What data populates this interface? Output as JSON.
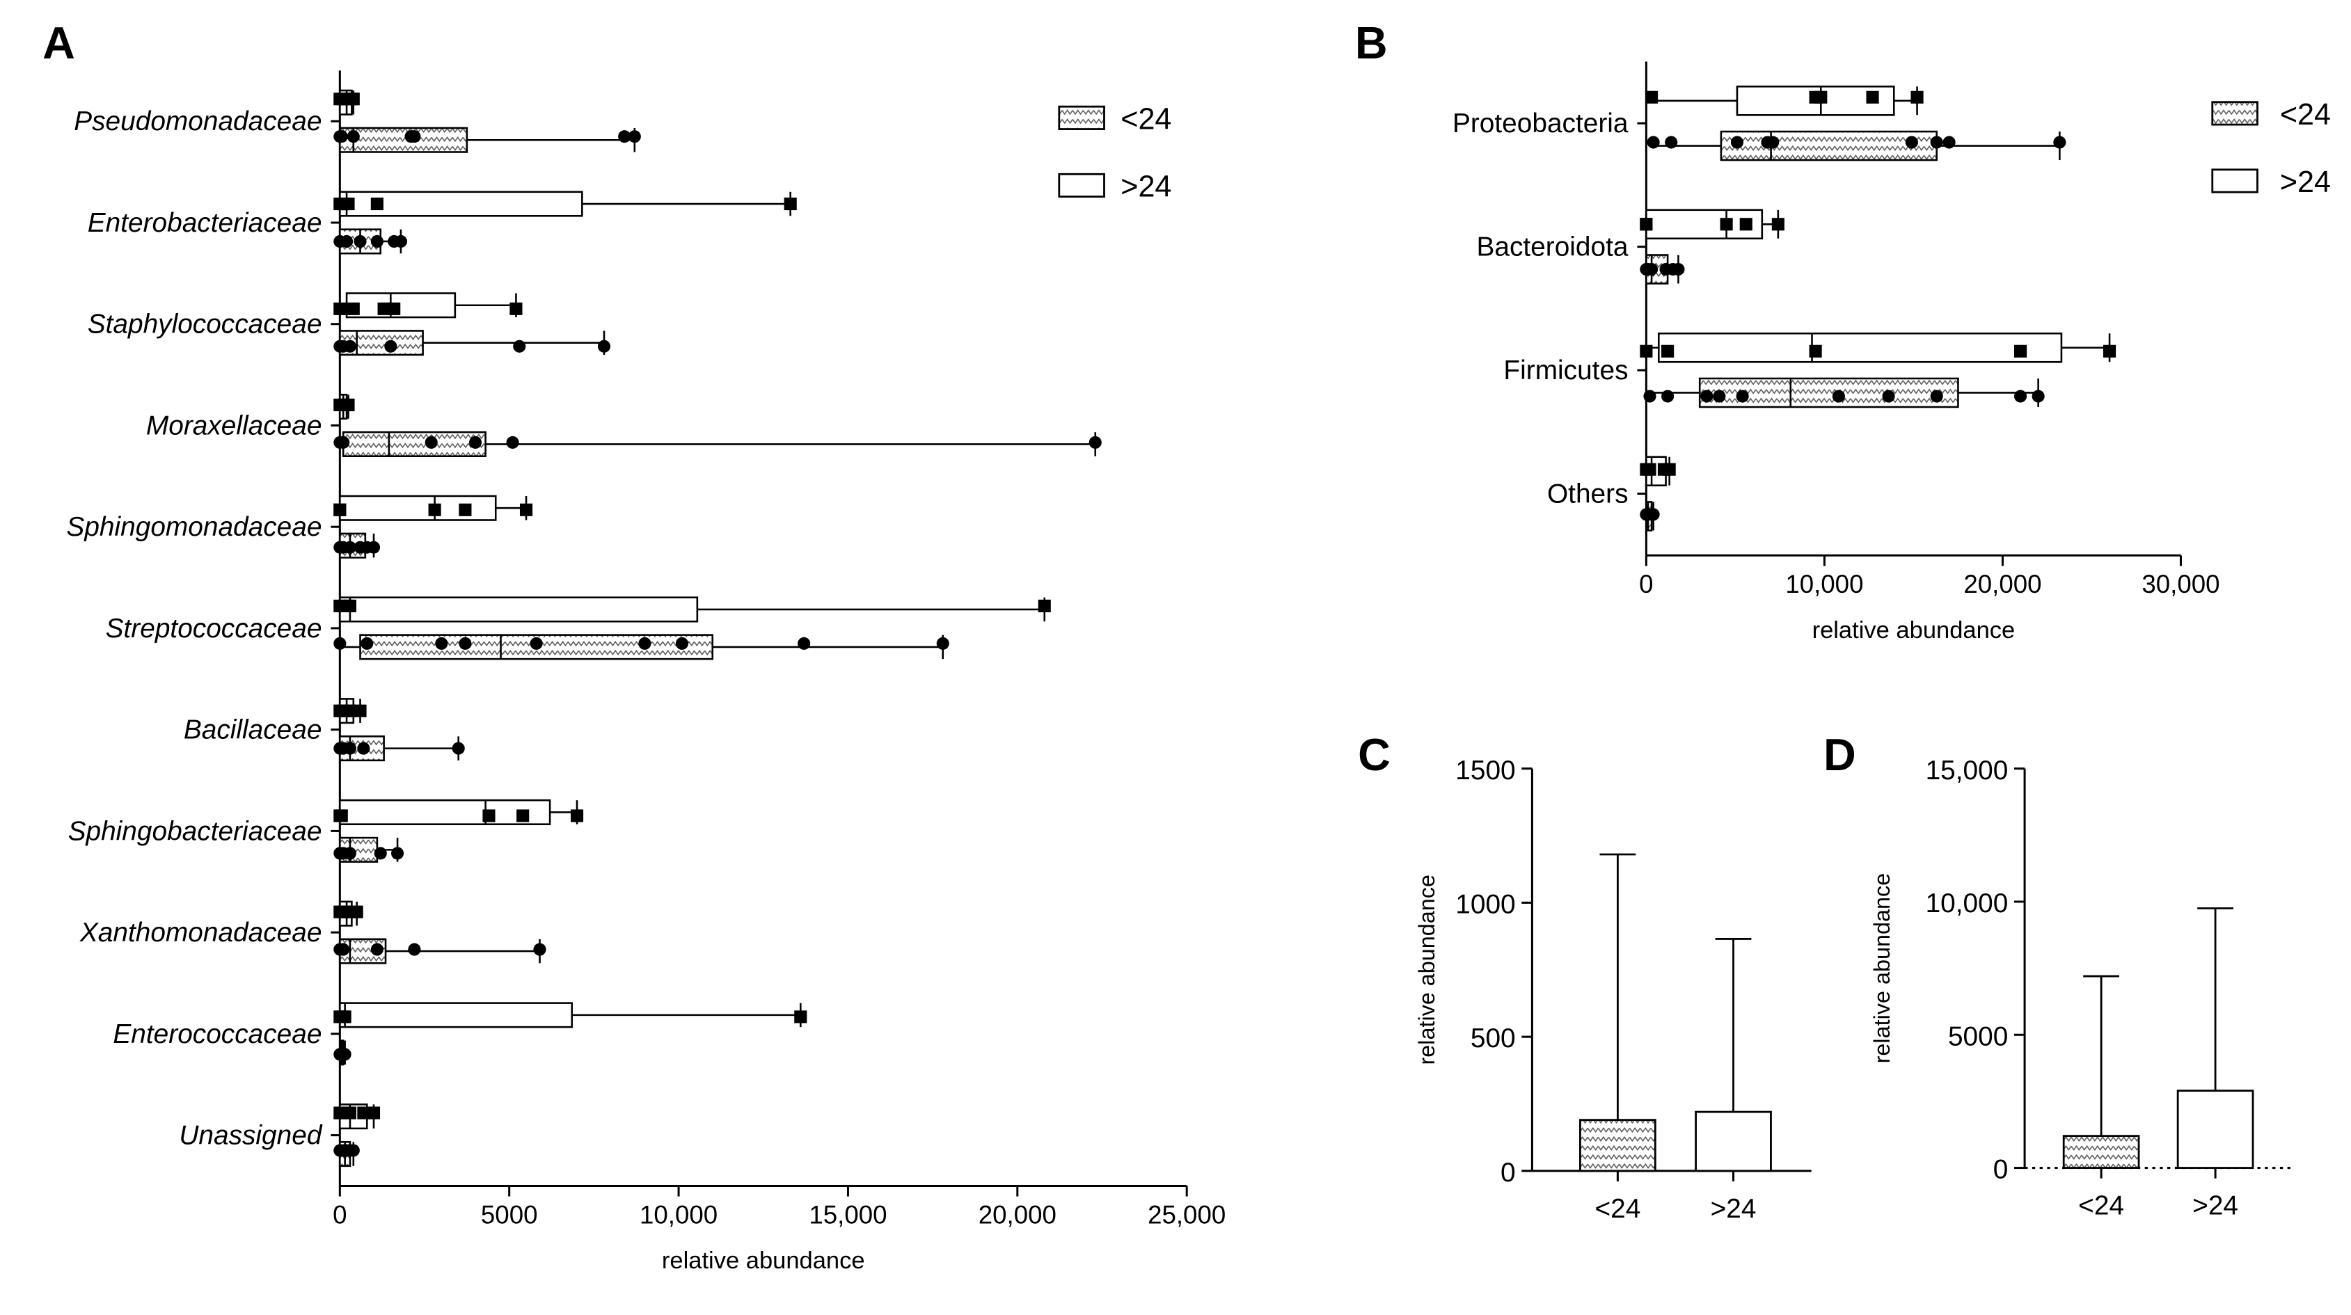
{
  "figure": {
    "panel_letters": [
      "A",
      "B",
      "C",
      "D"
    ],
    "legend": {
      "lt24": "<24",
      "gt24": ">24"
    }
  },
  "chart_data": [
    {
      "panel": "A",
      "type": "boxplot",
      "orientation": "horizontal",
      "xlabel": "relative abundance",
      "xlim": [
        0,
        25000
      ],
      "xticks": [
        0,
        5000,
        10000,
        15000,
        20000,
        25000
      ],
      "xtick_labels": [
        "0",
        "5000",
        "10,000",
        "15,000",
        "20,000",
        "25,000"
      ],
      "categories": [
        "Pseudomonadaceae",
        "Enterobacteriaceae",
        "Staphylococcaceae",
        "Moraxellaceae",
        "Sphingomonadaceae",
        "Streptococcaceae",
        "Bacillaceae",
        "Sphingobacteriaceae",
        "Xanthomonadaceae",
        "Enterococcaceae",
        "Unassigned"
      ],
      "italic_categories": true,
      "series": [
        {
          "name": ">24",
          "fill": "white",
          "marker": "square",
          "boxes": [
            {
              "min": 0,
              "q1": 0,
              "median": 200,
              "q3": 350,
              "max": 400,
              "points": [
                0,
                100,
                200,
                300,
                350,
                400,
                250
              ]
            },
            {
              "min": 0,
              "q1": 0,
              "median": 200,
              "q3": 7150,
              "max": 13300,
              "points": [
                0,
                100,
                250,
                1100,
                13300
              ]
            },
            {
              "min": 0,
              "q1": 200,
              "median": 1500,
              "q3": 3400,
              "max": 5200,
              "points": [
                0,
                400,
                1300,
                1600,
                5200
              ]
            },
            {
              "min": 0,
              "q1": 0,
              "median": 100,
              "q3": 200,
              "max": 250,
              "points": [
                0,
                100,
                200,
                250
              ]
            },
            {
              "min": 0,
              "q1": 0,
              "median": 2800,
              "q3": 4600,
              "max": 5500,
              "points": [
                0,
                0,
                2800,
                3700,
                5500
              ]
            },
            {
              "min": 0,
              "q1": 0,
              "median": 300,
              "q3": 10550,
              "max": 20800,
              "points": [
                0,
                200,
                300,
                20800
              ]
            },
            {
              "min": 0,
              "q1": 0,
              "median": 200,
              "q3": 400,
              "max": 600,
              "points": [
                0,
                100,
                200,
                300,
                600
              ]
            },
            {
              "min": 0,
              "q1": 0,
              "median": 4300,
              "q3": 6200,
              "max": 7000,
              "points": [
                0,
                50,
                4400,
                5400,
                7000
              ]
            },
            {
              "min": 0,
              "q1": 0,
              "median": 200,
              "q3": 350,
              "max": 500,
              "points": [
                0,
                100,
                200,
                300,
                500
              ]
            },
            {
              "min": 0,
              "q1": 0,
              "median": 150,
              "q3": 6850,
              "max": 13600,
              "points": [
                0,
                100,
                150,
                13600
              ]
            },
            {
              "min": 0,
              "q1": 0,
              "median": 300,
              "q3": 800,
              "max": 1000,
              "points": [
                0,
                50,
                300,
                700,
                1000
              ]
            }
          ]
        },
        {
          "name": "<24",
          "fill": "hatched",
          "marker": "circle",
          "boxes": [
            {
              "min": 0,
              "q1": 0,
              "median": 400,
              "q3": 3750,
              "max": 8700,
              "points": [
                0,
                50,
                400,
                2100,
                2200,
                8400,
                8700
              ]
            },
            {
              "min": 0,
              "q1": 0,
              "median": 600,
              "q3": 1200,
              "max": 1800,
              "points": [
                0,
                200,
                600,
                1100,
                1600,
                1800
              ]
            },
            {
              "min": 0,
              "q1": 0,
              "median": 500,
              "q3": 2450,
              "max": 7800,
              "points": [
                0,
                100,
                300,
                1500,
                5300,
                7800
              ]
            },
            {
              "min": 0,
              "q1": 100,
              "median": 1450,
              "q3": 4300,
              "max": 22300,
              "points": [
                0,
                100,
                2700,
                4000,
                5100,
                22300
              ]
            },
            {
              "min": 0,
              "q1": 0,
              "median": 300,
              "q3": 750,
              "max": 1000,
              "points": [
                0,
                100,
                300,
                600,
                800,
                1000
              ]
            },
            {
              "min": 0,
              "q1": 600,
              "median": 4750,
              "q3": 11000,
              "max": 17800,
              "points": [
                0,
                800,
                3000,
                3700,
                5800,
                9000,
                10100,
                13700,
                17800
              ]
            },
            {
              "min": 0,
              "q1": 0,
              "median": 300,
              "q3": 1300,
              "max": 3500,
              "points": [
                0,
                100,
                300,
                700,
                3500
              ]
            },
            {
              "min": 0,
              "q1": 0,
              "median": 300,
              "q3": 1100,
              "max": 1700,
              "points": [
                0,
                100,
                300,
                1200,
                1700
              ]
            },
            {
              "min": 0,
              "q1": 0,
              "median": 300,
              "q3": 1350,
              "max": 5900,
              "points": [
                0,
                100,
                1100,
                2200,
                5900
              ]
            },
            {
              "min": 0,
              "q1": 0,
              "median": 50,
              "q3": 100,
              "max": 150,
              "points": [
                0,
                50,
                100,
                150
              ]
            },
            {
              "min": 0,
              "q1": 0,
              "median": 150,
              "q3": 300,
              "max": 400,
              "points": [
                0,
                100,
                200,
                300,
                400
              ]
            }
          ]
        }
      ]
    },
    {
      "panel": "B",
      "type": "boxplot",
      "orientation": "horizontal",
      "xlabel": "relative abundance",
      "xlim": [
        0,
        30000
      ],
      "xticks": [
        0,
        10000,
        20000,
        30000
      ],
      "xtick_labels": [
        "0",
        "10,000",
        "20,000",
        "30,000"
      ],
      "categories": [
        "Proteobacteria",
        "Bacteroidota",
        "Firmicutes",
        "Others"
      ],
      "italic_categories": false,
      "series": [
        {
          "name": ">24",
          "fill": "white",
          "marker": "square",
          "boxes": [
            {
              "min": 300,
              "q1": 5100,
              "median": 9800,
              "q3": 13900,
              "max": 15200,
              "points": [
                300,
                9500,
                9800,
                12700,
                15200
              ]
            },
            {
              "min": 0,
              "q1": 0,
              "median": 4500,
              "q3": 6500,
              "max": 7400,
              "points": [
                0,
                0,
                4500,
                5600,
                7400
              ]
            },
            {
              "min": 0,
              "q1": 700,
              "median": 9300,
              "q3": 23300,
              "max": 26000,
              "points": [
                0,
                1200,
                9500,
                21000,
                26000
              ]
            },
            {
              "min": 0,
              "q1": 0,
              "median": 300,
              "q3": 1100,
              "max": 1300,
              "points": [
                0,
                200,
                1000,
                1300
              ]
            }
          ]
        },
        {
          "name": "<24",
          "fill": "hatched",
          "marker": "circle",
          "boxes": [
            {
              "min": 400,
              "q1": 4200,
              "median": 7000,
              "q3": 16300,
              "max": 23200,
              "points": [
                400,
                1400,
                5100,
                6800,
                7100,
                14900,
                16300,
                17000,
                23200
              ]
            },
            {
              "min": 0,
              "q1": 0,
              "median": 300,
              "q3": 1200,
              "max": 1800,
              "points": [
                0,
                100,
                300,
                1100,
                1500,
                1800
              ]
            },
            {
              "min": 200,
              "q1": 3000,
              "median": 8100,
              "q3": 17500,
              "max": 22000,
              "points": [
                200,
                1200,
                3400,
                4100,
                5400,
                10800,
                13600,
                16300,
                21000,
                22000
              ]
            },
            {
              "min": 0,
              "q1": 0,
              "median": 100,
              "q3": 300,
              "max": 400,
              "points": [
                0,
                100,
                300,
                400
              ]
            }
          ]
        }
      ]
    },
    {
      "panel": "C",
      "type": "bar",
      "ylabel": "relative abundance",
      "ylim": [
        0,
        1500
      ],
      "yticks": [
        0,
        500,
        1000,
        1500
      ],
      "ytick_labels": [
        "0",
        "500",
        "1000",
        "1500"
      ],
      "categories": [
        "<24",
        ">24"
      ],
      "values": [
        190,
        220
      ],
      "error_upper": [
        1180,
        865
      ],
      "fills": [
        "hatched",
        "white"
      ]
    },
    {
      "panel": "D",
      "type": "bar",
      "ylabel": "relative abundance",
      "ylim": [
        0,
        15000
      ],
      "yticks": [
        0,
        5000,
        10000,
        15000
      ],
      "ytick_labels": [
        "0",
        "5000",
        "10,000",
        "15,000"
      ],
      "categories": [
        "<24",
        ">24"
      ],
      "values": [
        1200,
        2900
      ],
      "error_upper": [
        7200,
        9750
      ],
      "fills": [
        "hatched",
        "white"
      ],
      "dotted_baseline": true
    }
  ]
}
